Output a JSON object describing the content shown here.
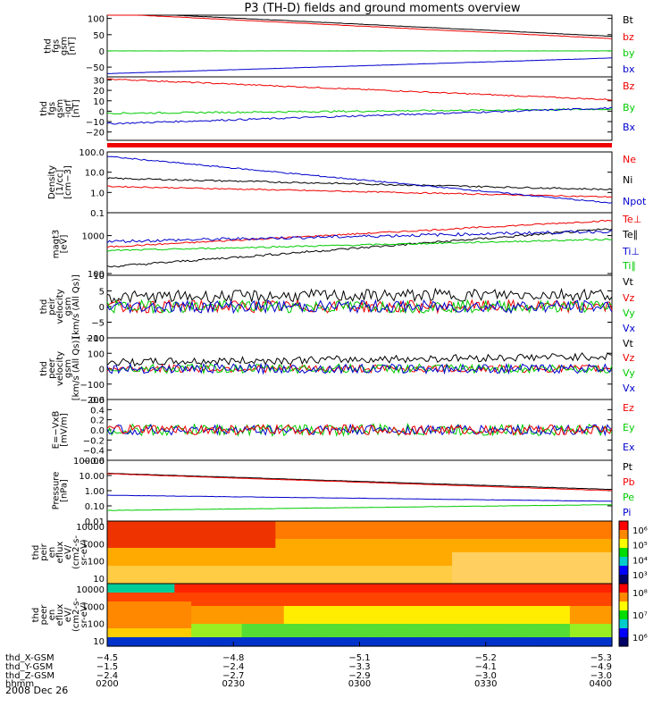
{
  "title": "P3 (TH-D) fields and ground moments overview",
  "date_label": "2008 Dec 26",
  "colors": {
    "black": "#000000",
    "red": "#ee0000",
    "green": "#00cc00",
    "blue": "#0000cc"
  },
  "chart_data": [
    {
      "id": "fgs_gsm",
      "type": "line",
      "ylabel": [
        "thd",
        "fgs",
        "gsm",
        "[nT]"
      ],
      "ylim": [
        -80,
        110
      ],
      "yticks": [
        "100",
        "50",
        "0",
        "−50"
      ],
      "ytick_values": [
        100,
        50,
        0,
        -50
      ],
      "legend": [
        {
          "name": "Bt",
          "color": "black"
        },
        {
          "name": "bz",
          "color": "red"
        },
        {
          "name": "by",
          "color": "green"
        },
        {
          "name": "bx",
          "color": "blue"
        }
      ],
      "series": [
        {
          "name": "Bt",
          "color": "black",
          "start": 120,
          "end": 45,
          "noise": 0.5
        },
        {
          "name": "bz",
          "color": "red",
          "start": 115,
          "end": 38,
          "noise": 0.5
        },
        {
          "name": "by",
          "color": "green",
          "start": 0,
          "end": 0,
          "noise": 0.2
        },
        {
          "name": "bx",
          "color": "blue",
          "start": -70,
          "end": -22,
          "noise": 0.4
        }
      ]
    },
    {
      "id": "fgs_gsm_igrf",
      "type": "line",
      "ylabel": [
        "thd",
        "fgs",
        "gsm",
        "-igrf",
        "[nT]"
      ],
      "ylim": [
        -28,
        33
      ],
      "yticks": [
        "30",
        "20",
        "10",
        "0",
        "−10",
        "−20"
      ],
      "ytick_values": [
        30,
        20,
        10,
        0,
        -10,
        -20
      ],
      "legend": [
        {
          "name": "Bz",
          "color": "red"
        },
        {
          "name": "By",
          "color": "green"
        },
        {
          "name": "Bx",
          "color": "blue"
        }
      ],
      "series": [
        {
          "name": "Bz",
          "color": "red",
          "start": 31,
          "end": 11,
          "noise": 0.6
        },
        {
          "name": "By",
          "color": "green",
          "start": -2,
          "end": 2,
          "noise": 0.8
        },
        {
          "name": "Bx",
          "color": "blue",
          "start": -12,
          "end": 3,
          "noise": 0.8
        }
      ]
    },
    {
      "id": "density",
      "type": "line",
      "log": true,
      "ylabel": [
        "Density",
        "[1/cc]",
        "[cm−3]"
      ],
      "ylim": [
        0.1,
        100
      ],
      "yticks": [
        "100.0",
        "10.0",
        "1.0",
        "0.1"
      ],
      "ytick_values": [
        100,
        10,
        1,
        0.1
      ],
      "legend": [
        {
          "name": "Ne",
          "color": "red"
        },
        {
          "name": "Ni",
          "color": "black"
        },
        {
          "name": "Npot",
          "color": "blue"
        }
      ],
      "series": [
        {
          "name": "Ni",
          "color": "black",
          "start": 5,
          "end": 1.4,
          "noise": 0.04
        },
        {
          "name": "Ne",
          "color": "red",
          "start": 2,
          "end": 0.6,
          "noise": 0.03
        },
        {
          "name": "Npot",
          "color": "blue",
          "start": 60,
          "end": 0.3,
          "noise": 0.03
        }
      ]
    },
    {
      "id": "temperature",
      "type": "line",
      "log": true,
      "ylabel": [
        "magt3",
        "[eV]"
      ],
      "ylim": [
        90,
        4000
      ],
      "yticks": [
        "1000",
        "100"
      ],
      "ytick_values": [
        1000,
        100
      ],
      "legend": [
        {
          "name": "Te⊥",
          "color": "red"
        },
        {
          "name": "Te∥",
          "color": "black"
        },
        {
          "name": "Ti⊥",
          "color": "blue"
        },
        {
          "name": "Ti∥",
          "color": "green"
        }
      ],
      "series": [
        {
          "name": "Te⊥",
          "color": "red",
          "start": 500,
          "end": 2500,
          "noise": 0.02
        },
        {
          "name": "Te∥",
          "color": "black",
          "start": 150,
          "end": 1500,
          "noise": 0.03
        },
        {
          "name": "Ti⊥",
          "color": "blue",
          "start": 700,
          "end": 1300,
          "noise": 0.04
        },
        {
          "name": "Ti∥",
          "color": "green",
          "start": 400,
          "end": 800,
          "noise": 0.02
        }
      ]
    },
    {
      "id": "peir_velocity",
      "type": "line",
      "ylabel": [
        "thd",
        "peir",
        "velocity",
        "gsm",
        "[km/s (All Qs)]"
      ],
      "ylim": [
        -10,
        10
      ],
      "yticks": [
        "10",
        "5",
        "0",
        "−5",
        "−10"
      ],
      "ytick_values": [
        10,
        5,
        0,
        -5,
        -10
      ],
      "legend": [
        {
          "name": "Vt",
          "color": "black"
        },
        {
          "name": "Vz",
          "color": "red"
        },
        {
          "name": "Vy",
          "color": "green"
        },
        {
          "name": "Vx",
          "color": "blue"
        }
      ],
      "series": [
        {
          "name": "Vt",
          "color": "black",
          "start": 3,
          "end": 4,
          "noise": 2
        },
        {
          "name": "Vz",
          "color": "red",
          "start": 0,
          "end": 0,
          "noise": 2
        },
        {
          "name": "Vy",
          "color": "green",
          "start": 0,
          "end": 0,
          "noise": 2
        },
        {
          "name": "Vx",
          "color": "blue",
          "start": 0,
          "end": 0,
          "noise": 2
        }
      ]
    },
    {
      "id": "peer_velocity",
      "type": "line",
      "ylabel": [
        "thd",
        "peer",
        "velocity",
        "gsm",
        "[km/s (All Qs)]"
      ],
      "ylim": [
        -200,
        200
      ],
      "yticks": [
        "200",
        "100",
        "0",
        "−100",
        "−200"
      ],
      "ytick_values": [
        200,
        100,
        0,
        -100,
        -200
      ],
      "legend": [
        {
          "name": "Vt",
          "color": "black"
        },
        {
          "name": "Vz",
          "color": "red"
        },
        {
          "name": "Vy",
          "color": "green"
        },
        {
          "name": "Vx",
          "color": "blue"
        }
      ],
      "series": [
        {
          "name": "Vt",
          "color": "black",
          "start": 40,
          "end": 80,
          "noise": 25
        },
        {
          "name": "Vz",
          "color": "red",
          "start": 0,
          "end": 0,
          "noise": 25
        },
        {
          "name": "Vy",
          "color": "green",
          "start": 0,
          "end": 0,
          "noise": 30
        },
        {
          "name": "Vx",
          "color": "blue",
          "start": 0,
          "end": 0,
          "noise": 30
        }
      ]
    },
    {
      "id": "efield",
      "type": "line",
      "ylabel": [
        "E=−VxB",
        "[mV/m]"
      ],
      "ylim": [
        -0.6,
        0.6
      ],
      "yticks": [
        "0.6",
        "0.4",
        "0.2",
        "0.0",
        "−0.2",
        "−0.4",
        "−0.6"
      ],
      "ytick_values": [
        0.6,
        0.4,
        0.2,
        0,
        -0.2,
        -0.4,
        -0.6
      ],
      "legend": [
        {
          "name": "Ez",
          "color": "red"
        },
        {
          "name": "Ey",
          "color": "green"
        },
        {
          "name": "Ex",
          "color": "blue"
        }
      ],
      "series": [
        {
          "name": "Ey",
          "color": "green",
          "start": 0,
          "end": 0,
          "noise": 0.12
        },
        {
          "name": "Ex",
          "color": "blue",
          "start": 0,
          "end": 0,
          "noise": 0.1
        },
        {
          "name": "Ez",
          "color": "red",
          "start": 0,
          "end": 0,
          "noise": 0.1
        }
      ]
    },
    {
      "id": "pressure",
      "type": "line",
      "log": true,
      "ylabel": [
        "Pressure",
        "[nPa]"
      ],
      "ylim": [
        0.01,
        100
      ],
      "yticks": [
        "100.00",
        "10.00",
        "1.00",
        "0.10",
        "0.01"
      ],
      "ytick_values": [
        100,
        10,
        1,
        0.1,
        0.01
      ],
      "legend": [
        {
          "name": "Pt",
          "color": "black"
        },
        {
          "name": "Pb",
          "color": "red"
        },
        {
          "name": "Pe",
          "color": "green"
        },
        {
          "name": "Pi",
          "color": "blue"
        }
      ],
      "series": [
        {
          "name": "Pt",
          "color": "black",
          "start": 14,
          "end": 1.2,
          "noise": 0.01
        },
        {
          "name": "Pb",
          "color": "red",
          "start": 13,
          "end": 1.0,
          "noise": 0.01
        },
        {
          "name": "Pi",
          "color": "blue",
          "start": 0.5,
          "end": 0.2,
          "noise": 0.01
        },
        {
          "name": "Pe",
          "color": "green",
          "start": 0.05,
          "end": 0.12,
          "noise": 0.01
        }
      ]
    },
    {
      "id": "peir_spectrogram",
      "type": "heatmap",
      "ylabel": [
        "thd",
        "peir",
        "en",
        "eflux",
        "eV/",
        "(cm2-s-",
        "sr-eV)"
      ],
      "yticks": [
        "10000",
        "1000",
        "100",
        "10"
      ],
      "colorbar_labels": [
        "10⁶",
        "10⁵",
        "10⁴",
        "10³"
      ]
    },
    {
      "id": "peer_spectrogram",
      "type": "heatmap",
      "ylabel": [
        "thd",
        "peer",
        "en",
        "eflux",
        "eV/",
        "(cm2-s-",
        "sr-eV)"
      ],
      "yticks": [
        "10000",
        "1000",
        "100",
        "10"
      ],
      "colorbar_labels": [
        "10⁸",
        "10⁷",
        "10⁶"
      ]
    }
  ],
  "x_axis": {
    "ticks": [
      "0200",
      "0230",
      "0300",
      "0330",
      "0400"
    ],
    "rows": [
      {
        "label": "thd_X-GSM",
        "values": [
          "−4.5",
          "−4.8",
          "−5.1",
          "−5.2",
          "−5.3"
        ]
      },
      {
        "label": "thd_Y-GSM",
        "values": [
          "−1.5",
          "−2.4",
          "−3.3",
          "−4.1",
          "−4.9"
        ]
      },
      {
        "label": "thd_Z-GSM",
        "values": [
          "−2.4",
          "−2.7",
          "−2.9",
          "−3.0",
          "−3.0"
        ]
      },
      {
        "label": "hhmm",
        "values": [
          "0200",
          "0230",
          "0300",
          "0330",
          "0400"
        ]
      }
    ]
  }
}
